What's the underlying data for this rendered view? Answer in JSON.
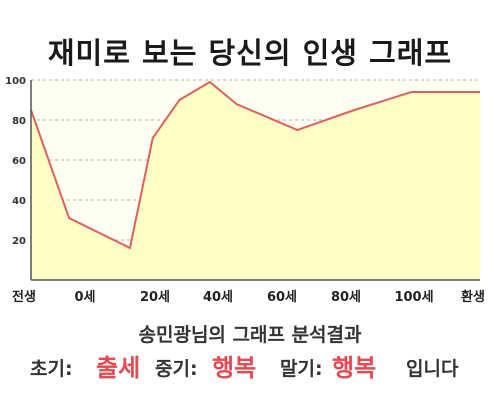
{
  "title": "재미로 보는 당신의 인생 그래프",
  "chart_data": {
    "type": "area",
    "title": "재미로 보는 당신의 인생 그래프",
    "x": [
      "전생",
      "0세",
      "20세",
      "40세",
      "60세",
      "80세",
      "100세",
      "환생"
    ],
    "series": [
      {
        "x": [
          -10,
          0,
          16,
          22,
          29,
          37,
          44,
          60,
          75,
          90,
          108
        ],
        "values": [
          85,
          31,
          16,
          71,
          90,
          99,
          88,
          75,
          85,
          94,
          94
        ]
      }
    ],
    "ylim": [
      0,
      100
    ],
    "yticks": [
      20,
      40,
      60,
      80,
      100
    ],
    "grid": true,
    "colors": {
      "line": "#e06060",
      "fill": "#ffffc6",
      "grid": "#b0b0b0",
      "axis": "#555555"
    }
  },
  "analysis_title": "송민광님의 그래프 분석결과",
  "result": {
    "early_label": "초기:",
    "early_value": "출세",
    "mid_label": "중기:",
    "mid_value": "행복",
    "late_label": "말기:",
    "late_value": "행복",
    "ending": "입니다"
  }
}
